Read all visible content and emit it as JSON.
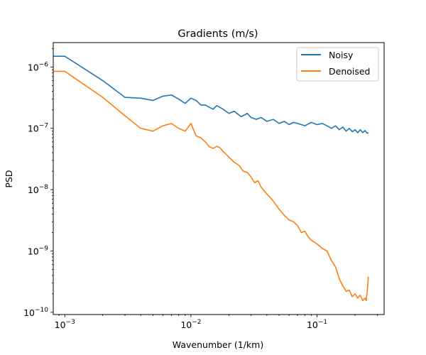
{
  "chart_data": {
    "type": "line",
    "title": "Gradients (m/s)",
    "xlabel": "Wavenumber (1/km)",
    "ylabel": "PSD",
    "xscale": "log",
    "yscale": "log",
    "xlim": [
      0.00081,
      0.34
    ],
    "ylim": [
      9.2e-11,
      2.5e-06
    ],
    "legend_location": "top-right",
    "grid": false,
    "x_ticks": [
      {
        "value": 0.001,
        "base": "10",
        "exp": "−3"
      },
      {
        "value": 0.01,
        "base": "10",
        "exp": "−2"
      },
      {
        "value": 0.1,
        "base": "10",
        "exp": "−1"
      }
    ],
    "y_ticks": [
      {
        "value": 1e-10,
        "base": "10",
        "exp": "−10"
      },
      {
        "value": 1e-09,
        "base": "10",
        "exp": "−9"
      },
      {
        "value": 1e-08,
        "base": "10",
        "exp": "−8"
      },
      {
        "value": 1e-07,
        "base": "10",
        "exp": "−7"
      },
      {
        "value": 1e-06,
        "base": "10",
        "exp": "−6"
      }
    ],
    "series": [
      {
        "name": "Noisy",
        "color": "#1f77b4",
        "points": [
          [
            0.00081,
            1.5e-06
          ],
          [
            0.001,
            1.5e-06
          ],
          [
            0.002,
            6e-07
          ],
          [
            0.003,
            3.2e-07
          ],
          [
            0.004,
            3.1e-07
          ],
          [
            0.005,
            2.85e-07
          ],
          [
            0.006,
            3.35e-07
          ],
          [
            0.007,
            3.5e-07
          ],
          [
            0.008,
            3e-07
          ],
          [
            0.009,
            2.55e-07
          ],
          [
            0.01,
            3.1e-07
          ],
          [
            0.011,
            2.85e-07
          ],
          [
            0.012,
            2.4e-07
          ],
          [
            0.013,
            2.4e-07
          ],
          [
            0.014,
            2.2e-07
          ],
          [
            0.015,
            2.05e-07
          ],
          [
            0.016,
            2.35e-07
          ],
          [
            0.018,
            2.05e-07
          ],
          [
            0.02,
            1.75e-07
          ],
          [
            0.022,
            1.9e-07
          ],
          [
            0.025,
            1.55e-07
          ],
          [
            0.028,
            1.75e-07
          ],
          [
            0.03,
            1.5e-07
          ],
          [
            0.033,
            1.4e-07
          ],
          [
            0.036,
            1.5e-07
          ],
          [
            0.04,
            1.3e-07
          ],
          [
            0.045,
            1.4e-07
          ],
          [
            0.05,
            1.2e-07
          ],
          [
            0.055,
            1.3e-07
          ],
          [
            0.06,
            1.15e-07
          ],
          [
            0.065,
            1.25e-07
          ],
          [
            0.07,
            1.2e-07
          ],
          [
            0.08,
            1.1e-07
          ],
          [
            0.09,
            1.25e-07
          ],
          [
            0.1,
            1.15e-07
          ],
          [
            0.11,
            1.2e-07
          ],
          [
            0.12,
            1.1e-07
          ],
          [
            0.13,
            1e-07
          ],
          [
            0.14,
            1.1e-07
          ],
          [
            0.15,
            9.5e-08
          ],
          [
            0.16,
            1.05e-07
          ],
          [
            0.17,
            9e-08
          ],
          [
            0.18,
            1e-07
          ],
          [
            0.19,
            8.8e-08
          ],
          [
            0.2,
            9.5e-08
          ],
          [
            0.21,
            8.5e-08
          ],
          [
            0.22,
            9.5e-08
          ],
          [
            0.23,
            8.5e-08
          ],
          [
            0.24,
            9.2e-08
          ],
          [
            0.25,
            8.3e-08
          ],
          [
            0.255,
            8.5e-08
          ]
        ]
      },
      {
        "name": "Denoised",
        "color": "#ff7f0e",
        "points": [
          [
            0.00081,
            8.5e-07
          ],
          [
            0.001,
            8.5e-07
          ],
          [
            0.002,
            3.2e-07
          ],
          [
            0.003,
            1.6e-07
          ],
          [
            0.004,
            1e-07
          ],
          [
            0.005,
            9e-08
          ],
          [
            0.006,
            1.1e-07
          ],
          [
            0.007,
            1.2e-07
          ],
          [
            0.008,
            1e-07
          ],
          [
            0.009,
            9e-08
          ],
          [
            0.01,
            1.2e-07
          ],
          [
            0.011,
            7.5e-08
          ],
          [
            0.012,
            7e-08
          ],
          [
            0.013,
            6e-08
          ],
          [
            0.014,
            5e-08
          ],
          [
            0.015,
            4.7e-08
          ],
          [
            0.016,
            5.1e-08
          ],
          [
            0.017,
            4.8e-08
          ],
          [
            0.018,
            4.2e-08
          ],
          [
            0.02,
            3.4e-08
          ],
          [
            0.022,
            2.8e-08
          ],
          [
            0.024,
            2.5e-08
          ],
          [
            0.026,
            2e-08
          ],
          [
            0.028,
            1.9e-08
          ],
          [
            0.03,
            1.6e-08
          ],
          [
            0.032,
            1.3e-08
          ],
          [
            0.034,
            1.4e-08
          ],
          [
            0.036,
            1.1e-08
          ],
          [
            0.04,
            8.5e-09
          ],
          [
            0.045,
            6.5e-09
          ],
          [
            0.05,
            4.8e-09
          ],
          [
            0.055,
            3.8e-09
          ],
          [
            0.06,
            3.2e-09
          ],
          [
            0.065,
            3e-09
          ],
          [
            0.07,
            2.6e-09
          ],
          [
            0.075,
            2e-09
          ],
          [
            0.08,
            2.1e-09
          ],
          [
            0.085,
            1.7e-09
          ],
          [
            0.09,
            1.5e-09
          ],
          [
            0.1,
            1.3e-09
          ],
          [
            0.11,
            1.1e-09
          ],
          [
            0.12,
            1e-09
          ],
          [
            0.13,
            7e-10
          ],
          [
            0.14,
            5.5e-10
          ],
          [
            0.15,
            3.5e-10
          ],
          [
            0.16,
            2.7e-10
          ],
          [
            0.17,
            2.2e-10
          ],
          [
            0.18,
            2.3e-10
          ],
          [
            0.19,
            1.8e-10
          ],
          [
            0.2,
            2e-10
          ],
          [
            0.21,
            1.7e-10
          ],
          [
            0.22,
            1.9e-10
          ],
          [
            0.23,
            1.55e-10
          ],
          [
            0.24,
            1.7e-10
          ],
          [
            0.245,
            1.55e-10
          ],
          [
            0.25,
            2.2e-10
          ],
          [
            0.255,
            3.8e-10
          ]
        ]
      }
    ]
  }
}
